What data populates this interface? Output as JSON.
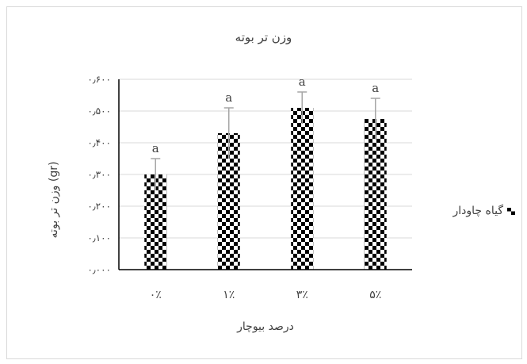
{
  "chart_data": {
    "type": "bar",
    "title": "وزن تر بوته",
    "xlabel": "درصد بیوچار",
    "ylabel": "وزن تر بوته (gr)",
    "categories": [
      "۰٪",
      "۱٪",
      "۳٪",
      "۵٪"
    ],
    "series": [
      {
        "name": "گیاه چاودار",
        "values": [
          0.3,
          0.43,
          0.51,
          0.475
        ],
        "error": [
          0.05,
          0.08,
          0.05,
          0.065
        ],
        "labels": [
          "a",
          "a",
          "a",
          "a"
        ]
      }
    ],
    "ylim": [
      0,
      0.6
    ],
    "yticks": [
      0,
      0.1,
      0.2,
      0.3,
      0.4,
      0.5,
      0.6
    ],
    "ytick_labels": [
      "۰٫۰۰۰",
      "۰٫۱۰۰",
      "۰٫۲۰۰",
      "۰٫۳۰۰",
      "۰٫۴۰۰",
      "۰٫۵۰۰",
      "۰٫۶۰۰"
    ],
    "grid": true,
    "legend_position": "right",
    "bar_pattern": "checkerboard",
    "colors": {
      "bar_dark": "#000000",
      "bar_light": "#ffffff",
      "error_bar": "#a6a6a6",
      "grid": "#d9d9d9",
      "axis": "#000000",
      "text": "#404040"
    }
  }
}
